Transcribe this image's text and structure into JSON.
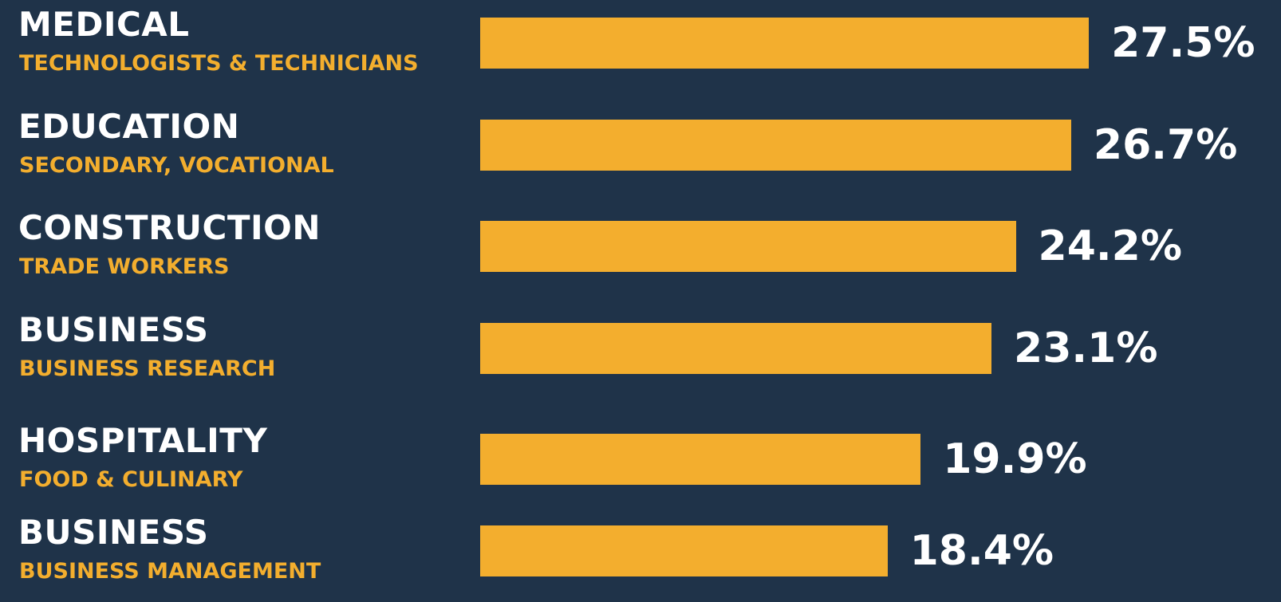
{
  "chart_data": {
    "type": "bar",
    "orientation": "horizontal",
    "categories": [
      {
        "title": "MEDICAL",
        "subtitle": "TECHNOLOGISTS & TECHNICIANS"
      },
      {
        "title": "EDUCATION",
        "subtitle": "SECONDARY, VOCATIONAL"
      },
      {
        "title": "CONSTRUCTION",
        "subtitle": "TRADE WORKERS"
      },
      {
        "title": "BUSINESS",
        "subtitle": "BUSINESS RESEARCH"
      },
      {
        "title": "HOSPITALITY",
        "subtitle": "FOOD & CULINARY"
      },
      {
        "title": "BUSINESS",
        "subtitle": "BUSINESS MANAGEMENT"
      }
    ],
    "values": [
      27.5,
      26.7,
      24.2,
      23.1,
      19.9,
      18.4
    ],
    "value_labels": [
      "27.5%",
      "26.7%",
      "24.2%",
      "23.1%",
      "19.9%",
      "18.4%"
    ],
    "unit": "%",
    "colors": {
      "background": "#1f3349",
      "bar": "#f3ae2e",
      "title_text": "#ffffff",
      "subtitle_text": "#f3ae2e",
      "value_text": "#ffffff"
    }
  }
}
